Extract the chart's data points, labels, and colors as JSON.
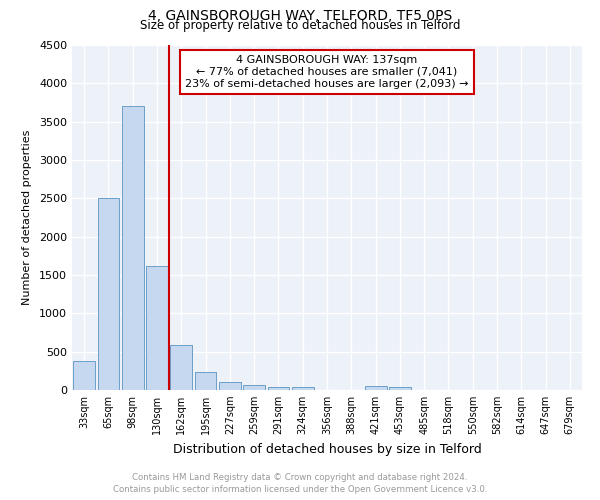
{
  "title": "4, GAINSBOROUGH WAY, TELFORD, TF5 0PS",
  "subtitle": "Size of property relative to detached houses in Telford",
  "xlabel": "Distribution of detached houses by size in Telford",
  "ylabel": "Number of detached properties",
  "categories": [
    "33sqm",
    "65sqm",
    "98sqm",
    "130sqm",
    "162sqm",
    "195sqm",
    "227sqm",
    "259sqm",
    "291sqm",
    "324sqm",
    "356sqm",
    "388sqm",
    "421sqm",
    "453sqm",
    "485sqm",
    "518sqm",
    "550sqm",
    "582sqm",
    "614sqm",
    "647sqm",
    "679sqm"
  ],
  "values": [
    380,
    2500,
    3700,
    1620,
    590,
    230,
    110,
    60,
    40,
    35,
    0,
    0,
    55,
    40,
    0,
    0,
    0,
    0,
    0,
    0,
    0
  ],
  "bar_color": "#c5d8ef",
  "bar_edge_color": "#6b9fc8",
  "vline_after_index": 3,
  "vline_color": "#cc0000",
  "ylim": [
    0,
    4500
  ],
  "yticks": [
    0,
    500,
    1000,
    1500,
    2000,
    2500,
    3000,
    3500,
    4000,
    4500
  ],
  "annotation_line1": "4 GAINSBOROUGH WAY: 137sqm",
  "annotation_line2": "← 77% of detached houses are smaller (7,041)",
  "annotation_line3": "23% of semi-detached houses are larger (2,093) →",
  "annotation_box_color": "#cc0000",
  "footer_line1": "Contains HM Land Registry data © Crown copyright and database right 2024.",
  "footer_line2": "Contains public sector information licensed under the Open Government Licence v3.0.",
  "plot_bg_color": "#edf2f9"
}
